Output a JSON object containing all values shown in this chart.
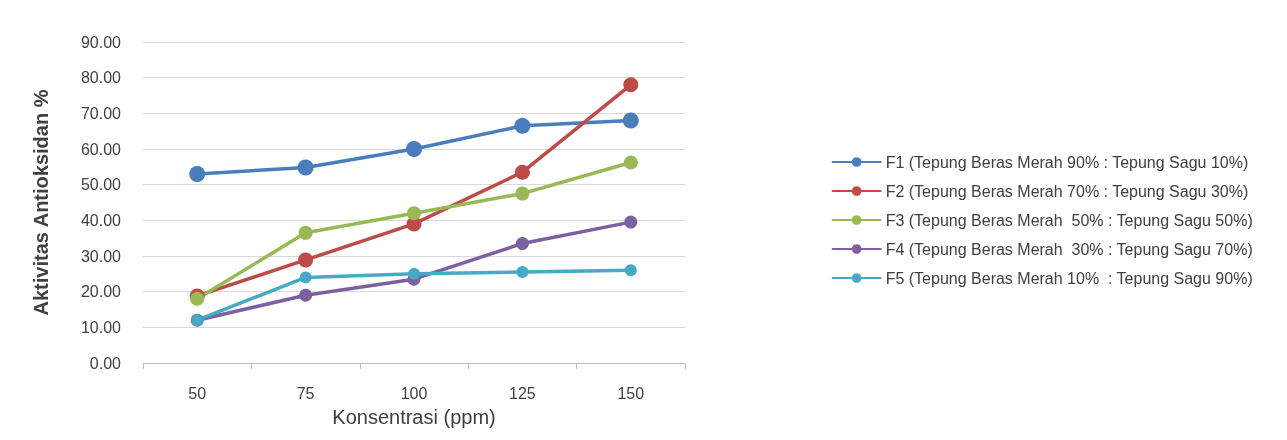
{
  "chart_data": {
    "type": "line",
    "xlabel": "Konsentrasi (ppm)",
    "ylabel": "Aktivitas Antioksidan %",
    "categories": [
      "50",
      "75",
      "100",
      "125",
      "150"
    ],
    "series": [
      {
        "name": "F1 (Tepung Beras Merah 90% : Tepung Sagu 10%)",
        "color": "#4a7ebb",
        "values": [
          53,
          54.8,
          60,
          66.5,
          68
        ]
      },
      {
        "name": "F2 (Tepung Beras Merah 70% : Tepung Sagu 30%)",
        "color": "#be4b48",
        "values": [
          18.8,
          28.9,
          39,
          53.5,
          78
        ]
      },
      {
        "name": "F3 (Tepung Beras Merah  50% : Tepung Sagu 50%)",
        "color": "#98b954",
        "values": [
          18,
          36.5,
          42,
          47.5,
          56.2
        ]
      },
      {
        "name": "F4 (Tepung Beras Merah  30% : Tepung Sagu 70%)",
        "color": "#7d60a0",
        "values": [
          12,
          19,
          23.5,
          33.5,
          39.5
        ]
      },
      {
        "name": "F5 (Tepung Beras Merah 10%  : Tepung Sagu 90%)",
        "color": "#46aac5",
        "values": [
          12,
          24,
          25,
          25.5,
          26
        ]
      }
    ],
    "ylim": [
      0,
      90
    ],
    "yticks": [
      {
        "value": 0,
        "label": "0.00"
      },
      {
        "value": 10,
        "label": "10.00"
      },
      {
        "value": 20,
        "label": "20.00"
      },
      {
        "value": 30,
        "label": "30.00"
      },
      {
        "value": 40,
        "label": "40.00"
      },
      {
        "value": 50,
        "label": "50.00"
      },
      {
        "value": 60,
        "label": "60.00"
      },
      {
        "value": 70,
        "label": "70.00"
      },
      {
        "value": 80,
        "label": "80.00"
      },
      {
        "value": 90,
        "label": "90.00"
      }
    ],
    "grid": "y",
    "legend": "right",
    "marker": "circle",
    "line_style": "solid"
  }
}
